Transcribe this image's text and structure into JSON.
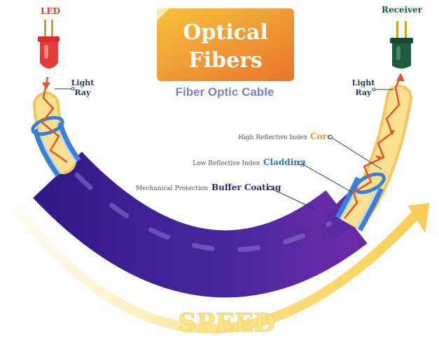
{
  "title": {
    "line1": "Optical",
    "line2": "Fibers"
  },
  "subtitle": "Fiber Optic Cable",
  "source": {
    "label": "LED"
  },
  "receiver": {
    "label": "Receiver"
  },
  "light_ray_left": {
    "line1": "Light",
    "line2": "Ray"
  },
  "light_ray_right": {
    "line1": "Light",
    "line2": "Ray"
  },
  "layers": [
    {
      "note": "High Reflective Index",
      "name": "Core"
    },
    {
      "note": "Low Reflective Index",
      "name": "Cladding"
    },
    {
      "note": "Mechanical Protection",
      "name": "Buffer Coating"
    }
  ],
  "speed_label": "SPEED",
  "colors": {
    "title_gradient_start": "#f7c43c",
    "title_gradient_end": "#e9732d",
    "subtitle": "#7d7fc4",
    "led": "#e53a3a",
    "receiver": "#1f5a3e",
    "core_fill": "#fbe08f",
    "core_outline": "#f2c75d",
    "cladding": "#3d7fd1",
    "buffer": "#3f2398",
    "ray": "#e2552b",
    "speed_arrow": "#fbe48a",
    "core_label": "#f0922f",
    "cladding_label": "#2f74cc",
    "buffer_label": "#2e1e7a",
    "label_dark": "#2b3a5b",
    "label_red": "#d93a2b",
    "label_green": "#1f5a3e"
  }
}
